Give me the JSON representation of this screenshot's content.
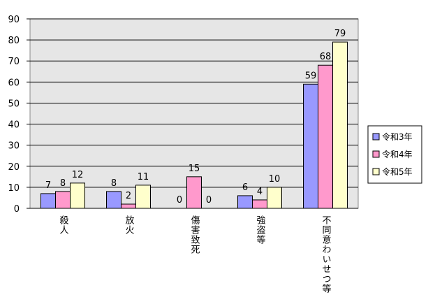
{
  "chart_data": {
    "type": "bar",
    "categories": [
      "殺人",
      "放火",
      "傷害致死",
      "強盗等",
      "不同意わいせつ等"
    ],
    "series": [
      {
        "name": "令和3年",
        "color": "#9999ff",
        "values": [
          7,
          8,
          0,
          6,
          59
        ]
      },
      {
        "name": "令和4年",
        "color": "#ff99cc",
        "values": [
          8,
          2,
          15,
          4,
          68
        ]
      },
      {
        "name": "令和5年",
        "color": "#ffffcc",
        "values": [
          12,
          11,
          0,
          10,
          79
        ]
      }
    ],
    "ylim": [
      0,
      90
    ],
    "yticks": [
      0,
      10,
      20,
      30,
      40,
      50,
      60,
      70,
      80,
      90
    ],
    "grid": true,
    "legend": "right"
  }
}
